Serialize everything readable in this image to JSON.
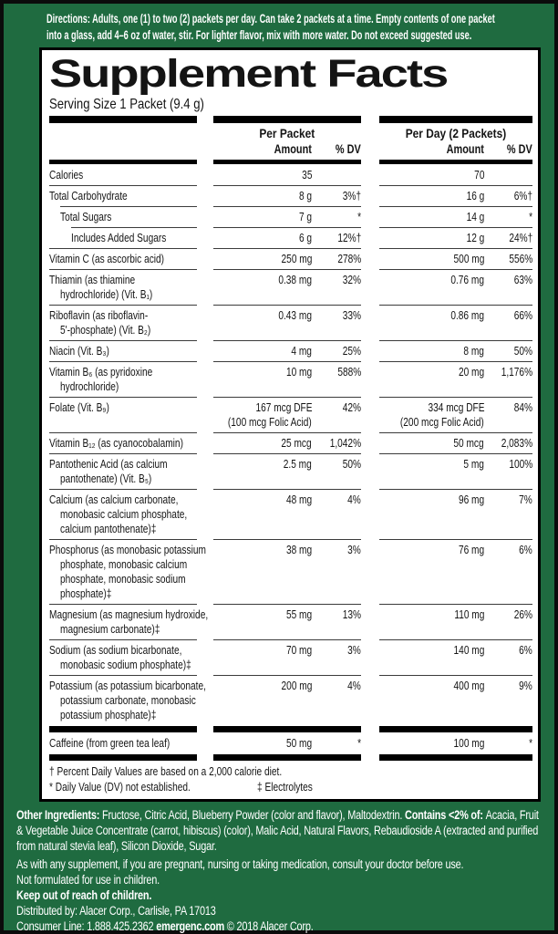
{
  "colors": {
    "background_green": "#1f6b40",
    "panel_white": "#ffffff",
    "bar_black": "#000000",
    "rule_gray": "#3b3b3b",
    "text_black": "#141414",
    "text_white": "#ffffff"
  },
  "directions": {
    "heading": "Directions:",
    "line1_rest": "Adults, one (1) to two (2) packets per day. Can take 2 packets at a time. Empty contents of one packet",
    "line2": "into a glass, add 4–6 oz of water, stir. For lighter flavor, mix with more water. Do not exceed suggested use."
  },
  "title": "Supplement Facts",
  "serving_size": "Serving Size 1 Packet (9.4 g)",
  "columns": {
    "packet": {
      "group": "Per Packet",
      "amount": "Amount",
      "dv": "% DV"
    },
    "day": {
      "group": "Per Day (2 Packets)",
      "amount": "Amount",
      "dv": "% DV"
    }
  },
  "table": {
    "elements": [
      {
        "type": "row",
        "ind": 0,
        "label": [
          "Calories"
        ],
        "pa": [
          "35"
        ],
        "pd": "",
        "da": [
          "70"
        ],
        "dd": ""
      },
      {
        "type": "row",
        "ind": 0,
        "label": [
          "Total Carbohydrate"
        ],
        "pa": [
          "8 g"
        ],
        "pd": "3%†",
        "da": [
          "16 g"
        ],
        "dd": "6%†"
      },
      {
        "type": "row",
        "ind": 1,
        "label": [
          "Total Sugars"
        ],
        "pa": [
          "7 g"
        ],
        "pd": "*",
        "da": [
          "14 g"
        ],
        "dd": "*"
      },
      {
        "type": "row",
        "ind": 2,
        "label": [
          "Includes Added Sugars"
        ],
        "pa": [
          "6 g"
        ],
        "pd": "12%†",
        "da": [
          "12 g"
        ],
        "dd": "24%†"
      },
      {
        "type": "row",
        "ind": 0,
        "label": [
          "Vitamin C (as ascorbic acid)"
        ],
        "pa": [
          "250 mg"
        ],
        "pd": "278%",
        "da": [
          "500 mg"
        ],
        "dd": "556%"
      },
      {
        "type": "row",
        "ind": 0,
        "label": [
          "Thiamin (as thiamine",
          "hydrochloride) (Vit. B₁)"
        ],
        "pa": [
          "0.38 mg"
        ],
        "pd": "32%",
        "da": [
          "0.76 mg"
        ],
        "dd": "63%"
      },
      {
        "type": "row",
        "ind": 0,
        "label": [
          "Riboflavin (as riboflavin-",
          "5'-phosphate) (Vit. B₂)"
        ],
        "pa": [
          "0.43 mg"
        ],
        "pd": "33%",
        "da": [
          "0.86 mg"
        ],
        "dd": "66%"
      },
      {
        "type": "row",
        "ind": 0,
        "label": [
          "Niacin (Vit. B₃)"
        ],
        "pa": [
          "4 mg"
        ],
        "pd": "25%",
        "da": [
          "8 mg"
        ],
        "dd": "50%"
      },
      {
        "type": "row",
        "ind": 0,
        "label": [
          "Vitamin B₆ (as pyridoxine",
          "hydrochloride)"
        ],
        "pa": [
          "10 mg"
        ],
        "pd": "588%",
        "da": [
          "20 mg"
        ],
        "dd": "1,176%"
      },
      {
        "type": "row",
        "ind": 0,
        "label": [
          "Folate (Vit. B₉)"
        ],
        "pa": [
          "167 mcg DFE",
          "(100 mcg Folic Acid)"
        ],
        "pd": "42%",
        "da": [
          "334 mcg DFE",
          "(200 mcg Folic Acid)"
        ],
        "dd": "84%"
      },
      {
        "type": "row",
        "ind": 0,
        "label": [
          "Vitamin B₁₂ (as cyanocobalamin)"
        ],
        "pa": [
          "25 mcg"
        ],
        "pd": "1,042%",
        "da": [
          "50 mcg"
        ],
        "dd": "2,083%"
      },
      {
        "type": "row",
        "ind": 0,
        "label": [
          "Pantothenic Acid (as calcium",
          "pantothenate) (Vit. B₅)"
        ],
        "pa": [
          "2.5 mg"
        ],
        "pd": "50%",
        "da": [
          "5 mg"
        ],
        "dd": "100%"
      },
      {
        "type": "row",
        "ind": 0,
        "label": [
          "Calcium (as calcium carbonate,",
          "monobasic calcium phosphate,",
          "calcium pantothenate)‡"
        ],
        "pa": [
          "48 mg"
        ],
        "pd": "4%",
        "da": [
          "96 mg"
        ],
        "dd": "7%"
      },
      {
        "type": "row",
        "ind": 0,
        "label": [
          "Phosphorus (as monobasic potassium",
          "phosphate, monobasic calcium",
          "phosphate, monobasic sodium",
          "phosphate)‡"
        ],
        "pa": [
          "38 mg"
        ],
        "pd": "3%",
        "da": [
          "76 mg"
        ],
        "dd": "6%"
      },
      {
        "type": "row",
        "ind": 0,
        "label": [
          "Magnesium (as magnesium hydroxide,",
          "magnesium carbonate)‡"
        ],
        "pa": [
          "55 mg"
        ],
        "pd": "13%",
        "da": [
          "110 mg"
        ],
        "dd": "26%"
      },
      {
        "type": "row",
        "ind": 0,
        "label": [
          "Sodium (as sodium bicarbonate,",
          "monobasic sodium phosphate)‡"
        ],
        "pa": [
          "70 mg"
        ],
        "pd": "3%",
        "da": [
          "140 mg"
        ],
        "dd": "6%"
      },
      {
        "type": "row",
        "ind": 0,
        "label": [
          "Potassium (as potassium bicarbonate,",
          "potassium carbonate, monobasic",
          "potassium phosphate)‡"
        ],
        "pa": [
          "200 mg"
        ],
        "pd": "4%",
        "da": [
          "400 mg"
        ],
        "dd": "9%"
      },
      {
        "type": "bar",
        "h": 7
      },
      {
        "type": "row",
        "ind": 0,
        "label": [
          "Caffeine (from green tea leaf)"
        ],
        "pa": [
          "50 mg"
        ],
        "pd": "*",
        "da": [
          "100 mg"
        ],
        "dd": "*"
      },
      {
        "type": "bar",
        "h": 7
      }
    ]
  },
  "footnotes": {
    "line1": "† Percent Daily Values are based on a 2,000 calorie diet.",
    "line2a": "* Daily Value (DV) not established.",
    "line2b": "‡ Electrolytes"
  },
  "bottom": {
    "other_ingredients": [
      {
        "t": "Other Ingredients: ",
        "b": true
      },
      {
        "t": "Fructose, Citric Acid, Blueberry Powder (color and flavor), Maltodextrin. ",
        "b": false
      },
      {
        "t": "Contains <2% of: ",
        "b": true
      },
      {
        "t": "Acacia, Fruit & Vegetable Juice Concentrate (carrot, hibiscus) (color), Malic Acid, Natural Flavors, Rebaudioside A (extracted and purified from natural stevia leaf), Silicon Dioxide, Sugar.",
        "b": false
      }
    ],
    "lines": [
      {
        "t": "As with any supplement, if you are pregnant, nursing or taking medication, consult your doctor before use.",
        "b": false,
        "gap": true
      },
      {
        "t": "Not formulated for use in children.",
        "b": false,
        "gap": false
      },
      {
        "t": "Keep out of reach of children.",
        "b": true,
        "gap": false
      },
      {
        "t": "Distributed by: Alacer Corp., Carlisle, PA 17013",
        "b": false,
        "gap": false
      }
    ],
    "consumer_line": [
      {
        "t": "Consumer Line: 1.888.425.2362  ",
        "b": false
      },
      {
        "t": "emergenc.com",
        "b": true
      },
      {
        "t": "  © 2018 Alacer Corp.",
        "b": false
      }
    ]
  }
}
